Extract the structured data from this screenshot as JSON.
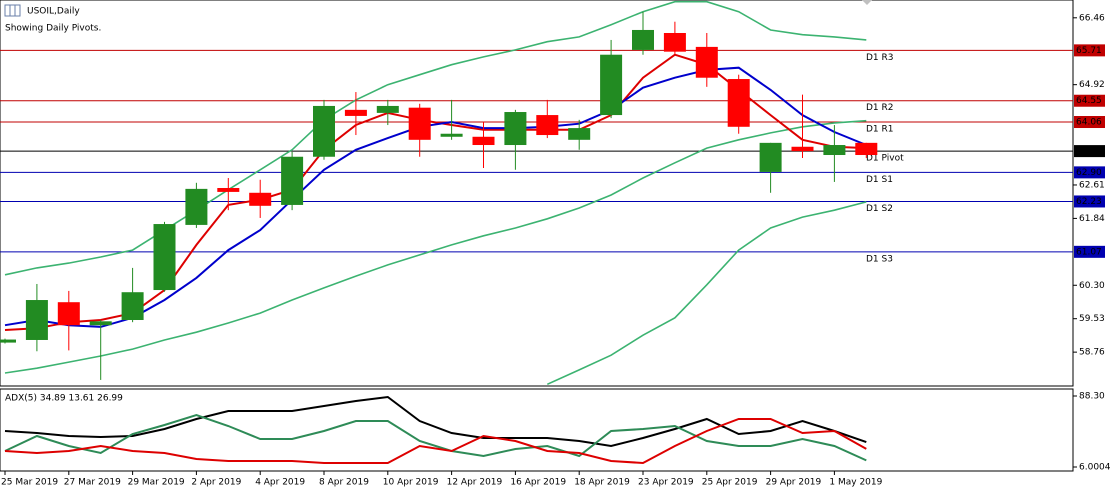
{
  "chart_data": [
    {
      "type": "candlestick",
      "title": "USOIL,Daily",
      "subtitle": "Showing Daily Pivots.",
      "categories": [
        "25 Mar 2019",
        null,
        "27 Mar 2019",
        null,
        "29 Mar 2019",
        null,
        "2 Apr 2019",
        null,
        "4 Apr 2019",
        null,
        "8 Apr 2019",
        null,
        "10 Apr 2019",
        null,
        "12 Apr 2019",
        null,
        "16 Apr 2019",
        null,
        "18 Apr 2019",
        null,
        "23 Apr 2019",
        null,
        "25 Apr 2019",
        null,
        "29 Apr 2019",
        null,
        "1 May 2019",
        null
      ],
      "open": [
        58.98,
        59.04,
        59.91,
        59.38,
        59.5,
        60.19,
        61.69,
        62.54,
        62.43,
        62.15,
        63.26,
        64.34,
        64.27,
        64.39,
        63.72,
        63.72,
        63.53,
        64.22,
        63.65,
        64.22,
        65.72,
        66.11,
        65.79,
        65.05,
        62.91,
        63.49,
        63.3,
        63.58
      ],
      "high": [
        59.07,
        60.33,
        60.17,
        59.5,
        60.7,
        61.76,
        62.66,
        62.77,
        62.73,
        63.37,
        64.57,
        64.75,
        64.57,
        64.48,
        64.57,
        64.06,
        64.34,
        64.57,
        64.11,
        65.95,
        66.6,
        66.37,
        66.11,
        65.15,
        63.58,
        64.69,
        63.99,
        63.58
      ],
      "low": [
        58.96,
        58.78,
        58.8,
        58.12,
        59.45,
        60.15,
        61.62,
        62.03,
        61.85,
        62.03,
        63.19,
        63.76,
        63.99,
        63.26,
        63.65,
        63.0,
        62.96,
        63.69,
        63.42,
        64.15,
        65.61,
        65.61,
        64.87,
        63.79,
        62.43,
        63.23,
        62.68,
        63.23
      ],
      "close": [
        59.05,
        59.96,
        59.38,
        59.47,
        60.14,
        61.71,
        62.52,
        62.45,
        62.13,
        63.26,
        64.43,
        64.2,
        64.43,
        63.65,
        63.79,
        63.53,
        64.29,
        63.76,
        63.92,
        65.61,
        66.18,
        65.68,
        65.08,
        63.95,
        63.58,
        63.39,
        63.53,
        63.3
      ],
      "up_color": "#228b22",
      "down_color": "#ff0000",
      "series": [
        {
          "color": "#3cb371",
          "values": [
            60.54,
            60.7,
            60.81,
            60.95,
            61.11,
            61.57,
            62.03,
            62.5,
            62.96,
            63.42,
            64.11,
            64.57,
            64.92,
            65.15,
            65.38,
            65.56,
            65.72,
            65.91,
            66.02,
            66.3,
            66.6,
            66.83,
            66.83,
            66.6,
            66.18,
            66.07,
            66.02,
            65.95
          ]
        },
        {
          "color": "#3cb371",
          "values": [
            58.28,
            58.39,
            58.53,
            58.67,
            58.83,
            59.04,
            59.22,
            59.43,
            59.66,
            59.96,
            60.24,
            60.51,
            60.77,
            61.0,
            61.23,
            61.44,
            61.62,
            61.83,
            62.08,
            62.38,
            62.77,
            63.12,
            63.46,
            63.65,
            63.81,
            63.95,
            64.04,
            64.09
          ]
        },
        {
          "color": "#3cb371",
          "values": [
            null,
            null,
            null,
            null,
            null,
            null,
            null,
            null,
            null,
            null,
            null,
            null,
            null,
            null,
            null,
            null,
            null,
            58.02,
            58.35,
            58.69,
            59.15,
            59.55,
            60.31,
            61.11,
            61.62,
            61.87,
            62.03,
            62.22
          ]
        },
        {
          "color": "#dd0000",
          "values": [
            59.27,
            59.31,
            59.45,
            59.5,
            59.66,
            60.19,
            61.23,
            62.15,
            62.27,
            62.5,
            63.42,
            63.99,
            64.27,
            64.11,
            63.99,
            63.88,
            63.88,
            63.88,
            63.88,
            64.22,
            65.08,
            65.61,
            65.38,
            64.8,
            64.22,
            63.65,
            63.49,
            63.46
          ]
        },
        {
          "color": "#0000cc",
          "values": [
            59.38,
            59.5,
            59.38,
            59.34,
            59.55,
            59.96,
            60.47,
            61.11,
            61.57,
            62.27,
            62.96,
            63.42,
            63.69,
            63.95,
            64.06,
            63.92,
            63.92,
            63.95,
            64.02,
            64.34,
            64.85,
            65.08,
            65.26,
            65.31,
            64.8,
            64.22,
            63.83,
            63.53
          ]
        }
      ],
      "levels": {
        "names": [
          "D1 R3",
          "D1 R2",
          "D1 R1",
          "D1 Pivot",
          "D1 S1",
          "D1 S2",
          "D1 S3"
        ],
        "values": [
          65.71,
          64.55,
          64.06,
          63.39,
          62.9,
          62.23,
          61.07
        ],
        "value_labels": [
          "65.71",
          "64.55",
          "64.06",
          "63.39",
          "62.90",
          "62.23",
          "61.07"
        ],
        "colors": [
          "#c00000",
          "#c00000",
          "#c00000",
          "#000000",
          "#0000b0",
          "#0000b0",
          "#0000b0"
        ]
      },
      "ylim": [
        57.98,
        66.87
      ],
      "yticks": [
        66.46,
        64.92,
        62.61,
        61.84,
        {
          "value": 60.3,
          "label": "60.30"
        },
        59.53,
        58.76
      ]
    },
    {
      "type": "line",
      "title": "ADX(5) 34.89 13.61 26.99",
      "series": [
        {
          "color": "#000000",
          "values": [
            47.73,
            45.41,
            41.93,
            40.77,
            41.93,
            50.05,
            61.64,
            70.91,
            70.91,
            70.91,
            76.71,
            82.5,
            87.14,
            59.32,
            45.41,
            39.61,
            39.61,
            39.61,
            36.14,
            30.34,
            39.61,
            50.05,
            61.64,
            44.25,
            47.73,
            59.32,
            47.73,
            34.89
          ]
        },
        {
          "color": "#2e8b57",
          "values": [
            24.54,
            41.93,
            30.34,
            22.23,
            44.25,
            54.68,
            66.28,
            53.52,
            38.45,
            38.45,
            47.73,
            59.32,
            59.32,
            36.14,
            24.54,
            18.75,
            26.86,
            30.34,
            18.75,
            47.73,
            50.05,
            53.52,
            36.14,
            30.34,
            30.34,
            38.45,
            30.34,
            13.61
          ]
        },
        {
          "color": "#dd0000",
          "values": [
            24.54,
            22.23,
            24.54,
            30.34,
            24.54,
            22.23,
            15.27,
            12.95,
            12.95,
            12.95,
            10.63,
            10.63,
            10.63,
            30.34,
            24.54,
            41.93,
            36.14,
            24.54,
            22.23,
            12.95,
            10.63,
            30.34,
            47.73,
            61.64,
            61.64,
            45.41,
            47.73,
            26.99
          ]
        }
      ],
      "ylim": [
        1.36,
        96.41
      ],
      "yticks": [
        {
          "value": 88.3,
          "label": "88.30"
        },
        6.0004
      ]
    }
  ]
}
